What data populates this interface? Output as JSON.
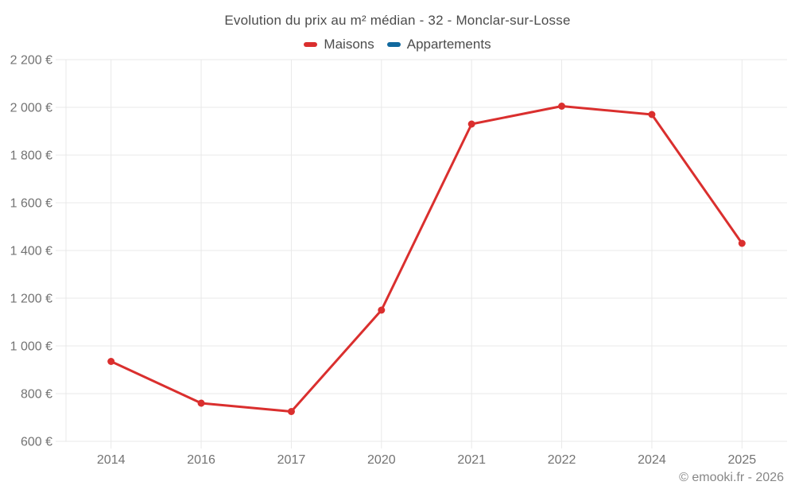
{
  "title": "Evolution du prix au m² médian - 32 - Monclar-sur-Losse",
  "legend": {
    "items": [
      {
        "label": "Maisons",
        "color": "#da2f2e"
      },
      {
        "label": "Appartements",
        "color": "#11699e"
      }
    ]
  },
  "footer": {
    "copyright": "© emooki.fr - 2026"
  },
  "colors": {
    "background": "#ffffff",
    "grid": "#e9e9e9",
    "axis_text": "#737373",
    "title_text": "#4c4c4c",
    "maisons_red": "#da2f2e",
    "appartements_blue": "#11699e"
  },
  "chart_data": {
    "type": "line",
    "title": "Evolution du prix au m² médian - 32 - Monclar-sur-Losse",
    "x": [
      "2014",
      "2016",
      "2017",
      "2020",
      "2021",
      "2022",
      "2024",
      "2025"
    ],
    "series": [
      {
        "name": "Maisons",
        "color": "#da2f2e",
        "values": [
          935,
          760,
          725,
          1150,
          1930,
          2005,
          1970,
          1430
        ]
      },
      {
        "name": "Appartements",
        "color": "#11699e",
        "values": []
      }
    ],
    "xlabel": "",
    "ylabel": "",
    "ylim": [
      600,
      2200
    ],
    "ytick_step": 200,
    "ytick_labels": [
      "600 €",
      "800 €",
      "1 000 €",
      "1 200 €",
      "1 400 €",
      "1 600 €",
      "1 800 €",
      "2 000 €",
      "2 200 €"
    ],
    "currency": "€",
    "grid": true,
    "legend_position": "top",
    "point_markers": true
  }
}
